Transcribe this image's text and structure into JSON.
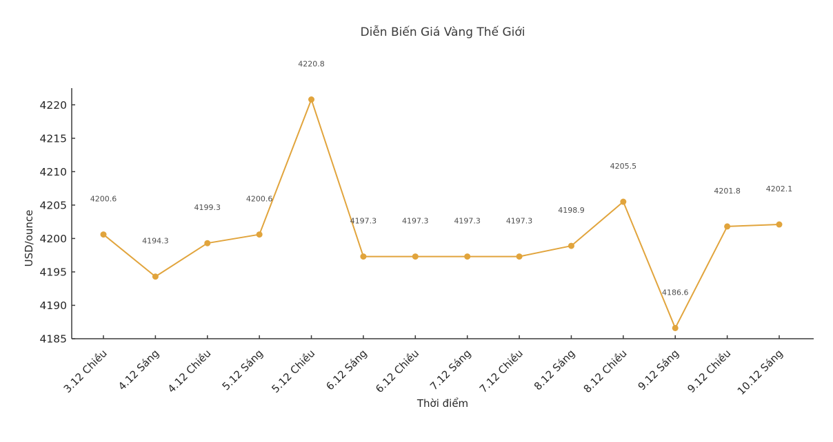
{
  "page": {
    "background_color": "#ffffff"
  },
  "chart_data": {
    "type": "line",
    "title": "Diễn Biến Giá Vàng Thế Giới",
    "xlabel": "Thời điểm",
    "ylabel": "USD/ounce",
    "categories": [
      "3.12 Chiều",
      "4.12 Sáng",
      "4.12 Chiều",
      "5.12 Sáng",
      "5.12 Chiều",
      "6.12 Sáng",
      "6.12 Chiều",
      "7.12 Sáng",
      "7.12 Chiều",
      "8.12 Sáng",
      "8.12 Chiều",
      "9.12 Sáng",
      "9.12 Chiều",
      "10.12 Sáng"
    ],
    "series": [
      {
        "name": "",
        "values": [
          4200.6,
          4194.3,
          4199.3,
          4200.6,
          4220.8,
          4197.3,
          4197.3,
          4197.3,
          4197.3,
          4198.9,
          4205.5,
          4186.6,
          4201.8,
          4202.1
        ]
      }
    ],
    "point_labels": [
      "4200.6",
      "4194.3",
      "4199.3",
      "4200.6",
      "4220.8",
      "4197.3",
      "4197.3",
      "4197.3",
      "4197.3",
      "4198.9",
      "4205.5",
      "4186.6",
      "4201.8",
      "4202.1"
    ],
    "yticks": [
      4185,
      4190,
      4195,
      4200,
      4205,
      4210,
      4215,
      4220
    ],
    "ylim": [
      4185,
      4222.5
    ],
    "grid": false,
    "legend": "none",
    "marker": "circle",
    "colors": {
      "line": "#E1A43C",
      "marker": "#E1A43C",
      "axis": "#3a3a3a",
      "tick_label": "#262626",
      "point_label": "#4d4d4d",
      "title": "#3a3a3a"
    }
  }
}
